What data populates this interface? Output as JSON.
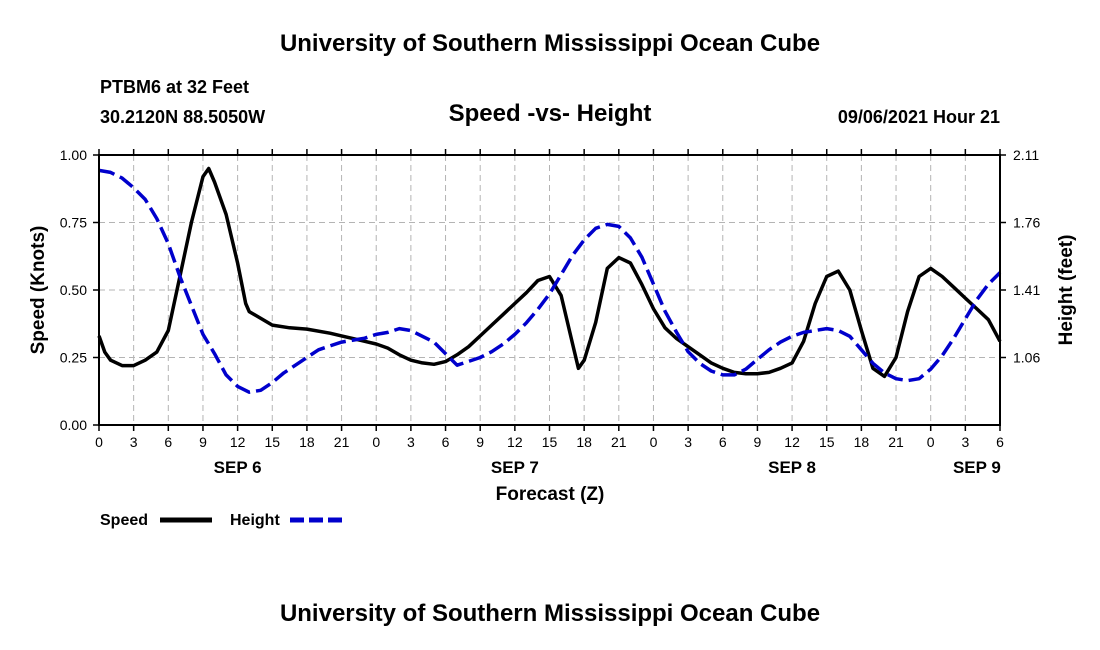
{
  "header": {
    "title_top": "University of Southern Mississippi Ocean Cube",
    "station": "PTBM6 at 32 Feet",
    "coords": "30.2120N  88.5050W",
    "datetime": "09/06/2021 Hour 21"
  },
  "footer": {
    "title_bottom": "University of Southern Mississippi Ocean Cube"
  },
  "legend": {
    "speed_label": "Speed",
    "height_label": "Height"
  },
  "colors": {
    "speed": "#000000",
    "height": "#0000cc",
    "grid": "#b4b4b4"
  },
  "chart_data": {
    "type": "line",
    "title": "Speed -vs- Height",
    "xlabel": "Forecast (Z)",
    "ylabel": "Speed (Knots)",
    "ylabel_right": "Height (feet)",
    "x_unit": "hours from 00Z Sep 6",
    "xlim": [
      0,
      78
    ],
    "ylim": [
      0,
      1
    ],
    "ylim_right": [
      0.71,
      2.11
    ],
    "x_ticks": [
      0,
      3,
      6,
      9,
      12,
      15,
      18,
      21,
      24,
      27,
      30,
      33,
      36,
      39,
      42,
      45,
      48,
      51,
      54,
      57,
      60,
      63,
      66,
      69,
      72,
      75,
      78
    ],
    "x_tick_labels": [
      "0",
      "3",
      "6",
      "9",
      "12",
      "15",
      "18",
      "21",
      "0",
      "3",
      "6",
      "9",
      "12",
      "15",
      "18",
      "21",
      "0",
      "3",
      "6",
      "9",
      "12",
      "15",
      "18",
      "21",
      "0",
      "3",
      "6"
    ],
    "y_ticks": [
      0,
      0.25,
      0.5,
      0.75,
      1.0
    ],
    "y_tick_labels": [
      "0.00",
      "0.25",
      "0.50",
      "0.75",
      "1.00"
    ],
    "y_ticks_right": [
      1.06,
      1.41,
      1.76,
      2.11
    ],
    "y_tick_labels_right": [
      "1.06",
      "1.41",
      "1.76",
      "2.11"
    ],
    "day_labels": [
      {
        "x": 12,
        "label": "SEP 6"
      },
      {
        "x": 36,
        "label": "SEP 7"
      },
      {
        "x": 60,
        "label": "SEP 8"
      },
      {
        "x": 76,
        "label": "SEP 9"
      }
    ],
    "series": [
      {
        "name": "Speed",
        "axis": "left",
        "style": "solid",
        "x": [
          0,
          0.5,
          1,
          2,
          3,
          4,
          5,
          6,
          7,
          8,
          9,
          9.5,
          10,
          11,
          12,
          12.7,
          13,
          15,
          16.5,
          18,
          20,
          21,
          22,
          23,
          24,
          25,
          26,
          27,
          28,
          29,
          30,
          31,
          32,
          33,
          34,
          35,
          36,
          37,
          38,
          39,
          40,
          41,
          41.5,
          42,
          43,
          44,
          45,
          46,
          47,
          48,
          49,
          50,
          51,
          52,
          53,
          54,
          55,
          56,
          57,
          58,
          59,
          60,
          61,
          62,
          63,
          64,
          65,
          66,
          67,
          68,
          69,
          70,
          71,
          72,
          73,
          74,
          75,
          76,
          77,
          78
        ],
        "values": [
          0.33,
          0.27,
          0.24,
          0.22,
          0.22,
          0.24,
          0.27,
          0.35,
          0.55,
          0.75,
          0.92,
          0.95,
          0.9,
          0.78,
          0.6,
          0.45,
          0.42,
          0.37,
          0.36,
          0.355,
          0.34,
          0.33,
          0.32,
          0.31,
          0.3,
          0.285,
          0.26,
          0.24,
          0.23,
          0.225,
          0.235,
          0.26,
          0.29,
          0.33,
          0.37,
          0.41,
          0.45,
          0.49,
          0.535,
          0.55,
          0.48,
          0.3,
          0.21,
          0.24,
          0.38,
          0.58,
          0.62,
          0.6,
          0.52,
          0.43,
          0.36,
          0.32,
          0.29,
          0.26,
          0.23,
          0.21,
          0.195,
          0.19,
          0.19,
          0.195,
          0.21,
          0.23,
          0.31,
          0.45,
          0.55,
          0.57,
          0.5,
          0.35,
          0.21,
          0.18,
          0.25,
          0.42,
          0.55,
          0.58,
          0.55,
          0.51,
          0.47,
          0.43,
          0.39,
          0.31
        ]
      },
      {
        "name": "Height",
        "axis": "right",
        "style": "dashed",
        "x": [
          0,
          1,
          2,
          3,
          4,
          5,
          6,
          7,
          8,
          9,
          10,
          11,
          12,
          13,
          14,
          15,
          16,
          17,
          18,
          19,
          20,
          21,
          22,
          23,
          24,
          25,
          26,
          27,
          28,
          29,
          30,
          31,
          32,
          33,
          34,
          35,
          36,
          37,
          38,
          39,
          40,
          41,
          42,
          43,
          44,
          45,
          46,
          47,
          48,
          49,
          50,
          51,
          52,
          53,
          54,
          55,
          56,
          57,
          58,
          59,
          60,
          61,
          62,
          63,
          64,
          65,
          66,
          67,
          68,
          69,
          70,
          71,
          72,
          73,
          74,
          75,
          76,
          77,
          78
        ],
        "values": [
          2.03,
          2.02,
          1.99,
          1.94,
          1.88,
          1.78,
          1.65,
          1.48,
          1.33,
          1.18,
          1.08,
          0.97,
          0.91,
          0.88,
          0.89,
          0.93,
          0.98,
          1.02,
          1.06,
          1.1,
          1.12,
          1.14,
          1.15,
          1.16,
          1.18,
          1.19,
          1.21,
          1.2,
          1.17,
          1.14,
          1.08,
          1.02,
          1.04,
          1.06,
          1.09,
          1.13,
          1.18,
          1.24,
          1.31,
          1.39,
          1.49,
          1.59,
          1.67,
          1.73,
          1.75,
          1.74,
          1.68,
          1.58,
          1.44,
          1.3,
          1.19,
          1.09,
          1.03,
          0.99,
          0.97,
          0.97,
          1.0,
          1.05,
          1.1,
          1.14,
          1.17,
          1.19,
          1.2,
          1.21,
          1.2,
          1.17,
          1.1,
          1.03,
          0.98,
          0.95,
          0.94,
          0.95,
          1.0,
          1.07,
          1.16,
          1.26,
          1.36,
          1.44,
          1.5
        ]
      }
    ]
  }
}
